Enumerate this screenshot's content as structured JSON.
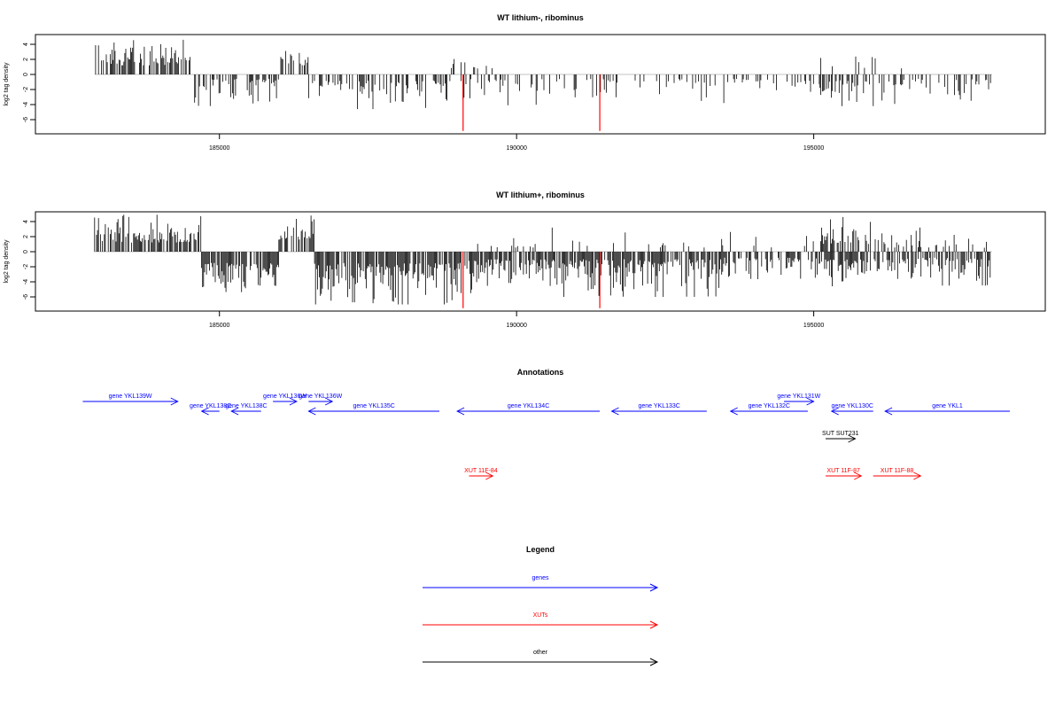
{
  "chart_data": [
    {
      "type": "bar",
      "title": "WT lithium-, ribominus",
      "ylabel": "log2 tag density",
      "xlim": [
        182500,
        198300
      ],
      "ylim": [
        -7.5,
        5.5
      ],
      "xticks": [
        185000,
        190000,
        195000
      ],
      "xtick_labels": [
        "185000",
        "190000",
        "195000"
      ],
      "yticks": [
        -6,
        -4,
        -2,
        0,
        2,
        4
      ],
      "ytick_labels": [
        "-6",
        "-4",
        "-2",
        "0",
        "2",
        "4"
      ],
      "highlight_lines": [
        {
          "x": 189100,
          "y": -7.5,
          "color": "#ff0000"
        },
        {
          "x": 191400,
          "y": -7.5,
          "color": "#ff0000"
        }
      ],
      "segments": [
        {
          "x0": 182900,
          "x1": 184550,
          "sign": 1,
          "min": 1.2,
          "max": 4.6,
          "density": 0.55
        },
        {
          "x0": 184550,
          "x1": 186000,
          "sign": -1,
          "min": 0.6,
          "max": 4.8,
          "density": 0.55
        },
        {
          "x0": 186000,
          "x1": 186500,
          "sign": 1,
          "min": 1.2,
          "max": 4.3,
          "density": 0.5
        },
        {
          "x0": 186500,
          "x1": 188900,
          "sign": -1,
          "min": 0.8,
          "max": 4.6,
          "density": 0.5
        },
        {
          "x0": 188900,
          "x1": 189700,
          "sign": 1,
          "min": 0.8,
          "max": 3.0,
          "density": 0.08
        },
        {
          "x0": 189000,
          "x1": 191700,
          "sign": -1,
          "min": 0.6,
          "max": 4.2,
          "density": 0.3
        },
        {
          "x0": 191700,
          "x1": 195100,
          "sign": -1,
          "min": 0.6,
          "max": 3.8,
          "density": 0.2
        },
        {
          "x0": 195100,
          "x1": 196500,
          "sign": 1,
          "min": 0.8,
          "max": 3.2,
          "density": 0.15
        },
        {
          "x0": 195100,
          "x1": 196500,
          "sign": -1,
          "min": 0.8,
          "max": 4.2,
          "density": 0.35
        },
        {
          "x0": 196500,
          "x1": 198000,
          "sign": -1,
          "min": 0.6,
          "max": 3.8,
          "density": 0.25
        }
      ]
    },
    {
      "type": "bar",
      "title": "WT lithium+, ribominus",
      "ylabel": "log2 tag density",
      "xlim": [
        182500,
        198300
      ],
      "ylim": [
        -7.5,
        5.5
      ],
      "xticks": [
        185000,
        190000,
        195000
      ],
      "xtick_labels": [
        "185000",
        "190000",
        "195000"
      ],
      "yticks": [
        -6,
        -4,
        -2,
        0,
        2,
        4
      ],
      "ytick_labels": [
        "-6",
        "-4",
        "-2",
        "0",
        "2",
        "4"
      ],
      "highlight_lines": [
        {
          "x": 189100,
          "y": -7.5,
          "color": "#ff0000"
        },
        {
          "x": 191400,
          "y": -7.5,
          "color": "#ff0000"
        }
      ],
      "segments": [
        {
          "x0": 182900,
          "x1": 184700,
          "sign": 1,
          "min": 1.2,
          "max": 4.9,
          "density": 0.75
        },
        {
          "x0": 184700,
          "x1": 186000,
          "sign": -1,
          "min": 1.5,
          "max": 5.5,
          "density": 0.8
        },
        {
          "x0": 186000,
          "x1": 186600,
          "sign": 1,
          "min": 1.5,
          "max": 4.8,
          "density": 0.7
        },
        {
          "x0": 186600,
          "x1": 189000,
          "sign": -1,
          "min": 1.5,
          "max": 7.0,
          "density": 0.9
        },
        {
          "x0": 189000,
          "x1": 190500,
          "sign": -1,
          "min": 1.0,
          "max": 5.5,
          "density": 0.7
        },
        {
          "x0": 189000,
          "x1": 190500,
          "sign": 1,
          "min": 0.5,
          "max": 3.5,
          "density": 0.12
        },
        {
          "x0": 190500,
          "x1": 193500,
          "sign": -1,
          "min": 1.0,
          "max": 6.0,
          "density": 0.8
        },
        {
          "x0": 190500,
          "x1": 195000,
          "sign": 1,
          "min": 0.5,
          "max": 3.2,
          "density": 0.08
        },
        {
          "x0": 193500,
          "x1": 195100,
          "sign": -1,
          "min": 0.8,
          "max": 4.0,
          "density": 0.6
        },
        {
          "x0": 195100,
          "x1": 196100,
          "sign": 1,
          "min": 1.0,
          "max": 4.6,
          "density": 0.5
        },
        {
          "x0": 195100,
          "x1": 196100,
          "sign": -1,
          "min": 1.0,
          "max": 5.0,
          "density": 0.7
        },
        {
          "x0": 196100,
          "x1": 198000,
          "sign": 1,
          "min": 0.5,
          "max": 3.2,
          "density": 0.25
        },
        {
          "x0": 196100,
          "x1": 198000,
          "sign": -1,
          "min": 0.8,
          "max": 4.5,
          "density": 0.6
        }
      ]
    }
  ],
  "annotations": {
    "title": "Annotations",
    "xlim": [
      182500,
      198300
    ],
    "features": [
      {
        "label": "gene YKL139W",
        "x0": 182700,
        "x1": 184300,
        "strand": "+",
        "row": 0,
        "color": "#0000ff"
      },
      {
        "label": "gene YKL138C",
        "x0": 184700,
        "x1": 185000,
        "strand": "-",
        "row": 1,
        "color": "#0000ff"
      },
      {
        "label": "gene YKL138C",
        "x0": 185200,
        "x1": 185700,
        "strand": "-",
        "row": 1,
        "color": "#0000ff"
      },
      {
        "label": "gene YKL136W",
        "x0": 185900,
        "x1": 186300,
        "strand": "+",
        "row": 0,
        "color": "#0000ff"
      },
      {
        "label": "gene YKL136W",
        "x0": 186500,
        "x1": 186900,
        "strand": "+",
        "row": 0,
        "color": "#0000ff"
      },
      {
        "label": "gene YKL135C",
        "x0": 186500,
        "x1": 188700,
        "strand": "-",
        "row": 1,
        "color": "#0000ff"
      },
      {
        "label": "gene YKL134C",
        "x0": 189000,
        "x1": 191400,
        "strand": "-",
        "row": 1,
        "color": "#0000ff"
      },
      {
        "label": "gene YKL133C",
        "x0": 191600,
        "x1": 193200,
        "strand": "-",
        "row": 1,
        "color": "#0000ff"
      },
      {
        "label": "gene YKL132C",
        "x0": 193600,
        "x1": 194900,
        "strand": "-",
        "row": 1,
        "color": "#0000ff"
      },
      {
        "label": "gene YKL131W",
        "x0": 194500,
        "x1": 195000,
        "strand": "+",
        "row": 0,
        "color": "#0000ff"
      },
      {
        "label": "gene YKL130C",
        "x0": 195300,
        "x1": 196000,
        "strand": "-",
        "row": 1,
        "color": "#0000ff"
      },
      {
        "label": "gene YKL1",
        "x0": 196200,
        "x1": 198300,
        "strand": "-",
        "row": 1,
        "color": "#0000ff"
      },
      {
        "label": "SUT SUT231",
        "x0": 195200,
        "x1": 195700,
        "strand": "+",
        "row": 2,
        "color": "#000000"
      },
      {
        "label": "XUT 11F-84",
        "x0": 189200,
        "x1": 189600,
        "strand": "+",
        "row": 3,
        "color": "#ff0000"
      },
      {
        "label": "XUT 11F-87",
        "x0": 195200,
        "x1": 195800,
        "strand": "+",
        "row": 3,
        "color": "#ff0000"
      },
      {
        "label": "XUT 11F-88",
        "x0": 196000,
        "x1": 196800,
        "strand": "+",
        "row": 3,
        "color": "#ff0000"
      }
    ]
  },
  "legend": {
    "title": "Legend",
    "items": [
      {
        "label": "genes",
        "color": "#0000ff"
      },
      {
        "label": "XUTs",
        "color": "#ff0000"
      },
      {
        "label": "other",
        "color": "#000000"
      }
    ]
  }
}
